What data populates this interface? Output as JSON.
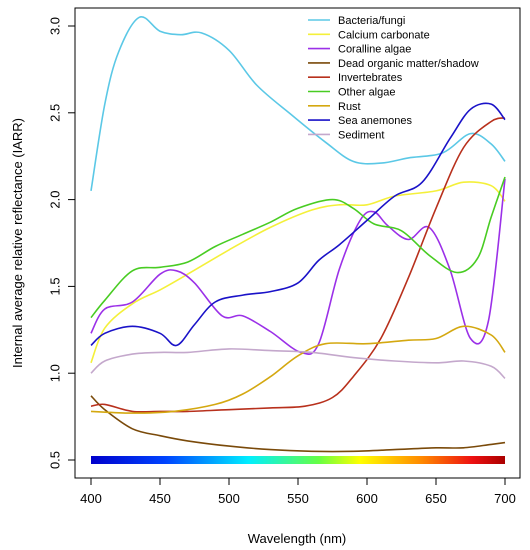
{
  "chart_data": {
    "type": "line",
    "title": "",
    "xlabel": "Wavelength (nm)",
    "ylabel": "Internal average relative reflectance (IARR)",
    "xlim": [
      400,
      700
    ],
    "ylim": [
      0.5,
      3.0
    ],
    "x_ticks": [
      "400",
      "450",
      "500",
      "550",
      "600",
      "650",
      "700"
    ],
    "y_ticks": [
      "0.5",
      "1.0",
      "1.5",
      "2.0",
      "2.5",
      "3.0"
    ],
    "grid": false,
    "legend_position": "top-right",
    "spectrum_bar": {
      "from_wavelength": 400,
      "to_wavelength": 700,
      "y": 0.5
    },
    "series": [
      {
        "name": "Bacteria/fungi",
        "color": "#5bc8e6",
        "points": [
          [
            400,
            2.05
          ],
          [
            410,
            2.55
          ],
          [
            420,
            2.85
          ],
          [
            435,
            3.05
          ],
          [
            450,
            2.97
          ],
          [
            465,
            2.95
          ],
          [
            480,
            2.96
          ],
          [
            500,
            2.86
          ],
          [
            520,
            2.66
          ],
          [
            545,
            2.49
          ],
          [
            570,
            2.33
          ],
          [
            590,
            2.22
          ],
          [
            610,
            2.21
          ],
          [
            630,
            2.24
          ],
          [
            655,
            2.27
          ],
          [
            675,
            2.38
          ],
          [
            690,
            2.32
          ],
          [
            700,
            2.22
          ]
        ]
      },
      {
        "name": "Calcium carbonate",
        "color": "#f4f03a",
        "points": [
          [
            400,
            1.06
          ],
          [
            410,
            1.26
          ],
          [
            430,
            1.4
          ],
          [
            450,
            1.48
          ],
          [
            470,
            1.57
          ],
          [
            500,
            1.71
          ],
          [
            530,
            1.84
          ],
          [
            560,
            1.94
          ],
          [
            580,
            1.97
          ],
          [
            600,
            1.97
          ],
          [
            620,
            2.02
          ],
          [
            650,
            2.05
          ],
          [
            670,
            2.1
          ],
          [
            690,
            2.08
          ],
          [
            700,
            1.99
          ]
        ]
      },
      {
        "name": "Coralline algae",
        "color": "#9b30e8",
        "points": [
          [
            400,
            1.23
          ],
          [
            410,
            1.37
          ],
          [
            430,
            1.41
          ],
          [
            450,
            1.57
          ],
          [
            462,
            1.59
          ],
          [
            475,
            1.52
          ],
          [
            495,
            1.33
          ],
          [
            510,
            1.33
          ],
          [
            530,
            1.24
          ],
          [
            552,
            1.12
          ],
          [
            565,
            1.17
          ],
          [
            580,
            1.6
          ],
          [
            595,
            1.88
          ],
          [
            605,
            1.93
          ],
          [
            615,
            1.85
          ],
          [
            630,
            1.77
          ],
          [
            645,
            1.84
          ],
          [
            660,
            1.6
          ],
          [
            675,
            1.2
          ],
          [
            688,
            1.3
          ],
          [
            700,
            2.12
          ]
        ]
      },
      {
        "name": "Dead organic matter/shadow",
        "color": "#7a4a0a",
        "points": [
          [
            400,
            0.87
          ],
          [
            410,
            0.79
          ],
          [
            430,
            0.68
          ],
          [
            450,
            0.64
          ],
          [
            470,
            0.61
          ],
          [
            500,
            0.58
          ],
          [
            530,
            0.56
          ],
          [
            560,
            0.55
          ],
          [
            590,
            0.55
          ],
          [
            620,
            0.56
          ],
          [
            650,
            0.57
          ],
          [
            670,
            0.57
          ],
          [
            690,
            0.59
          ],
          [
            700,
            0.6
          ]
        ]
      },
      {
        "name": "Invertebrates",
        "color": "#b8301c",
        "points": [
          [
            400,
            0.81
          ],
          [
            410,
            0.82
          ],
          [
            430,
            0.78
          ],
          [
            450,
            0.78
          ],
          [
            470,
            0.78
          ],
          [
            500,
            0.79
          ],
          [
            530,
            0.8
          ],
          [
            555,
            0.81
          ],
          [
            575,
            0.86
          ],
          [
            590,
            0.98
          ],
          [
            610,
            1.2
          ],
          [
            630,
            1.55
          ],
          [
            650,
            1.95
          ],
          [
            670,
            2.3
          ],
          [
            690,
            2.45
          ],
          [
            700,
            2.47
          ]
        ]
      },
      {
        "name": "Other algae",
        "color": "#48cc22",
        "points": [
          [
            400,
            1.32
          ],
          [
            410,
            1.42
          ],
          [
            430,
            1.59
          ],
          [
            450,
            1.61
          ],
          [
            470,
            1.64
          ],
          [
            490,
            1.73
          ],
          [
            510,
            1.8
          ],
          [
            530,
            1.87
          ],
          [
            550,
            1.95
          ],
          [
            575,
            2.0
          ],
          [
            590,
            1.95
          ],
          [
            605,
            1.86
          ],
          [
            625,
            1.82
          ],
          [
            645,
            1.68
          ],
          [
            665,
            1.58
          ],
          [
            680,
            1.66
          ],
          [
            690,
            1.9
          ],
          [
            700,
            2.13
          ]
        ]
      },
      {
        "name": "Rust",
        "color": "#d4a810",
        "points": [
          [
            400,
            0.78
          ],
          [
            430,
            0.77
          ],
          [
            460,
            0.78
          ],
          [
            490,
            0.82
          ],
          [
            510,
            0.88
          ],
          [
            530,
            0.98
          ],
          [
            550,
            1.1
          ],
          [
            570,
            1.17
          ],
          [
            600,
            1.17
          ],
          [
            630,
            1.19
          ],
          [
            650,
            1.2
          ],
          [
            670,
            1.27
          ],
          [
            690,
            1.22
          ],
          [
            700,
            1.12
          ]
        ]
      },
      {
        "name": "Sea anemones",
        "color": "#1a12c8",
        "points": [
          [
            400,
            1.16
          ],
          [
            410,
            1.23
          ],
          [
            430,
            1.27
          ],
          [
            450,
            1.23
          ],
          [
            462,
            1.16
          ],
          [
            475,
            1.28
          ],
          [
            490,
            1.41
          ],
          [
            510,
            1.45
          ],
          [
            530,
            1.47
          ],
          [
            550,
            1.52
          ],
          [
            565,
            1.65
          ],
          [
            580,
            1.74
          ],
          [
            600,
            1.88
          ],
          [
            620,
            2.02
          ],
          [
            640,
            2.1
          ],
          [
            660,
            2.35
          ],
          [
            675,
            2.52
          ],
          [
            690,
            2.55
          ],
          [
            700,
            2.46
          ]
        ]
      },
      {
        "name": "Sediment",
        "color": "#c4a8cc",
        "points": [
          [
            400,
            1.0
          ],
          [
            410,
            1.07
          ],
          [
            430,
            1.11
          ],
          [
            450,
            1.12
          ],
          [
            470,
            1.12
          ],
          [
            500,
            1.14
          ],
          [
            530,
            1.13
          ],
          [
            560,
            1.12
          ],
          [
            590,
            1.09
          ],
          [
            620,
            1.07
          ],
          [
            650,
            1.06
          ],
          [
            670,
            1.07
          ],
          [
            690,
            1.04
          ],
          [
            700,
            0.97
          ]
        ]
      }
    ]
  }
}
